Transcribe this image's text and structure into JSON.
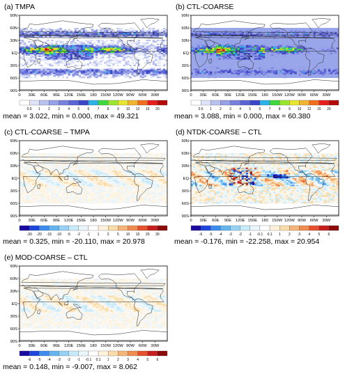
{
  "lat_labels": [
    "90N",
    "60N",
    "30N",
    "EQ",
    "30S",
    "60S",
    "90S"
  ],
  "lon_labels": [
    "0",
    "30E",
    "60E",
    "90E",
    "120E",
    "150E",
    "180",
    "150W",
    "120W",
    "90W",
    "60W",
    "30W"
  ],
  "panels": [
    {
      "title": "(a) TMPA",
      "kind": "seq",
      "colorbar_labels": [
        "0.5",
        "1",
        "2",
        "3",
        "4",
        "5",
        "6",
        "7",
        "8",
        "9",
        "10",
        "12",
        "15",
        "20"
      ],
      "stats": {
        "mean_label": "mean =",
        "mean": "3.022",
        "min_label": "min =",
        "min": "0.000",
        "max_label": "max =",
        "max": "49.321"
      }
    },
    {
      "title": "(b) CTL-COARSE",
      "kind": "seq_bg",
      "colorbar_labels": [
        "0.5",
        "1",
        "2",
        "3",
        "4",
        "5",
        "6",
        "7",
        "8",
        "9",
        "10",
        "12",
        "15",
        "20"
      ],
      "stats": {
        "mean_label": "mean =",
        "mean": "3.088",
        "min_label": "min =",
        "min": "0.000",
        "max_label": "max =",
        "max": "60.380"
      }
    },
    {
      "title": "(c) CTL-COARSE – TMPA",
      "kind": "div_light",
      "colorbar_labels": [
        "-30",
        "-20",
        "-15",
        "-10",
        "-5",
        "-2",
        "-1",
        "1",
        "2",
        "5",
        "10",
        "15",
        "20",
        "30"
      ],
      "stats": {
        "mean_label": "mean =",
        "mean": "0.325",
        "min_label": "min =",
        "min": "-20.110",
        "max_label": "max =",
        "max": "20.978"
      }
    },
    {
      "title": "(d) NTDK-COARSE – CTL",
      "kind": "div_strong",
      "colorbar_labels": [
        "-6",
        "-5",
        "-4",
        "-3",
        "-2",
        "-1",
        "-0.1",
        "0.1",
        "1",
        "2",
        "3",
        "4",
        "5",
        "6"
      ],
      "stats": {
        "mean_label": "mean =",
        "mean": "-0.176",
        "min_label": "min =",
        "min": "-22.258",
        "max_label": "max =",
        "max": "20.954"
      }
    },
    {
      "title": "(e) MOD-COARSE – CTL",
      "kind": "div_light",
      "colorbar_labels": [
        "-6",
        "-5",
        "-4",
        "-3",
        "-2",
        "-1",
        "-0.1",
        "0.1",
        "1",
        "2",
        "3",
        "4",
        "5",
        "6"
      ],
      "stats": {
        "mean_label": "mean =",
        "mean": "0.148",
        "min_label": "min =",
        "min": "-9.007",
        "max_label": "max =",
        "max": "8.062"
      }
    }
  ],
  "colors": {
    "seq": [
      "#ffffff",
      "#dfe3f7",
      "#b8c0ee",
      "#96a0e6",
      "#7880de",
      "#5a64d4",
      "#3c46c8",
      "#2bb2e6",
      "#3ed83e",
      "#9ae62e",
      "#e6e62e",
      "#f0b42e",
      "#f06e1e",
      "#e61e1e",
      "#b40a0a"
    ],
    "div": [
      "#1a0aa0",
      "#1e46dc",
      "#3c8cf0",
      "#64b4f0",
      "#96d2f5",
      "#c8ebfa",
      "#eaf6fb",
      "#ffffff",
      "#fff2dc",
      "#fadcaa",
      "#f5b478",
      "#f08c50",
      "#e6502d",
      "#c81e1e",
      "#8c0a0a"
    ],
    "coast": "#222222"
  }
}
